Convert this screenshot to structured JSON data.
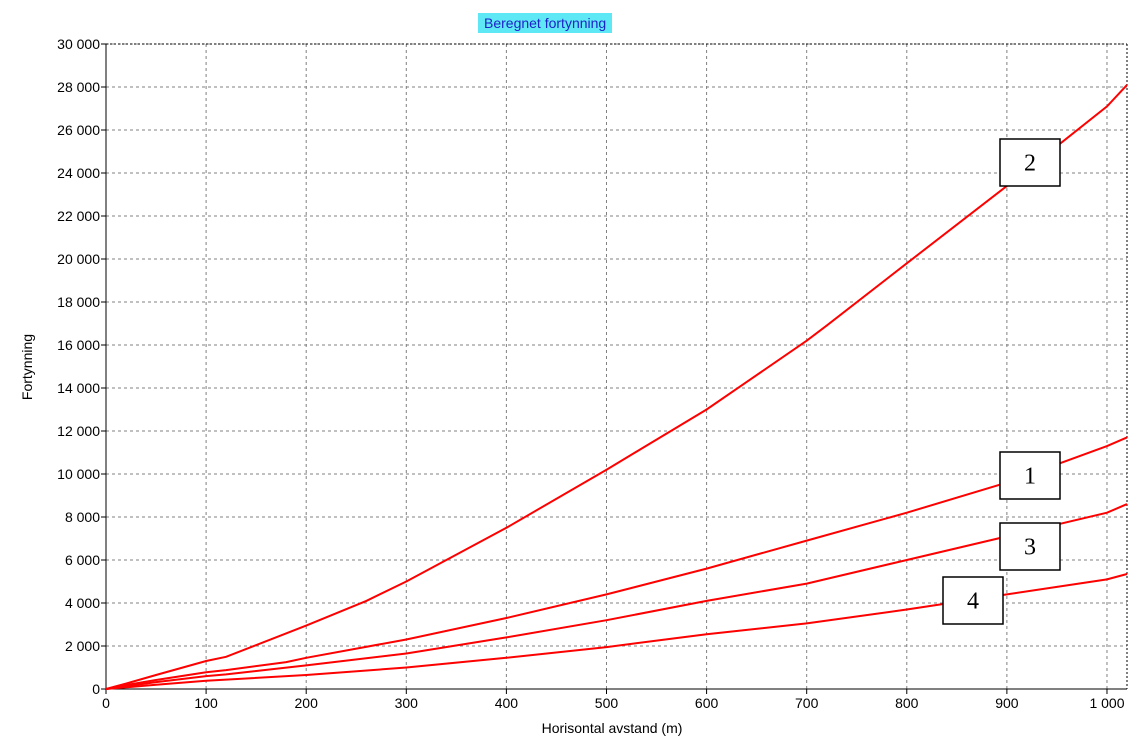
{
  "chart_data": {
    "type": "line",
    "title": "Beregnet fortynning",
    "xlabel": "Horisontal avstand (m)",
    "ylabel": "Fortynning",
    "xlim": [
      0,
      1020
    ],
    "ylim": [
      0,
      30000
    ],
    "x_ticks": [
      0,
      100,
      200,
      300,
      400,
      500,
      600,
      700,
      800,
      900,
      1000
    ],
    "x_tick_labels": [
      "0",
      "100",
      "200",
      "300",
      "400",
      "500",
      "600",
      "700",
      "800",
      "900",
      "1 000"
    ],
    "y_ticks": [
      0,
      2000,
      4000,
      6000,
      8000,
      10000,
      12000,
      14000,
      16000,
      18000,
      20000,
      22000,
      24000,
      26000,
      28000,
      30000
    ],
    "y_tick_labels": [
      "0",
      "2 000",
      "4 000",
      "6 000",
      "8 000",
      "10 000",
      "12 000",
      "14 000",
      "16 000",
      "18 000",
      "20 000",
      "22 000",
      "24 000",
      "26 000",
      "28 000",
      "30 000"
    ],
    "grid": true,
    "line_color": "#ff0000",
    "series": [
      {
        "label": "1",
        "x": [
          0,
          20,
          50,
          100,
          120,
          180,
          200,
          300,
          400,
          500,
          600,
          700,
          800,
          900,
          1000,
          1020
        ],
        "y": [
          0,
          180,
          420,
          780,
          880,
          1250,
          1450,
          2300,
          3300,
          4400,
          5600,
          6900,
          8200,
          9600,
          11300,
          11700
        ]
      },
      {
        "label": "2",
        "x": [
          0,
          20,
          50,
          100,
          120,
          200,
          260,
          300,
          400,
          500,
          600,
          700,
          720,
          800,
          900,
          1000,
          1020
        ],
        "y": [
          0,
          250,
          650,
          1300,
          1500,
          2950,
          4100,
          5000,
          7500,
          10200,
          13000,
          16200,
          16900,
          19800,
          23400,
          27100,
          28100
        ]
      },
      {
        "label": "3",
        "x": [
          0,
          20,
          50,
          100,
          120,
          200,
          300,
          400,
          500,
          600,
          700,
          800,
          900,
          1000,
          1020
        ],
        "y": [
          0,
          130,
          320,
          600,
          680,
          1100,
          1650,
          2400,
          3200,
          4100,
          4900,
          6000,
          7100,
          8200,
          8600
        ]
      },
      {
        "label": "4",
        "x": [
          0,
          20,
          50,
          100,
          200,
          300,
          400,
          500,
          600,
          700,
          800,
          900,
          1000,
          1020
        ],
        "y": [
          0,
          80,
          200,
          380,
          650,
          1000,
          1450,
          1950,
          2550,
          3050,
          3700,
          4400,
          5100,
          5350
        ]
      }
    ],
    "series_label_boxes": [
      {
        "label": "2"
      },
      {
        "label": "1"
      },
      {
        "label": "3"
      },
      {
        "label": "4"
      }
    ]
  }
}
